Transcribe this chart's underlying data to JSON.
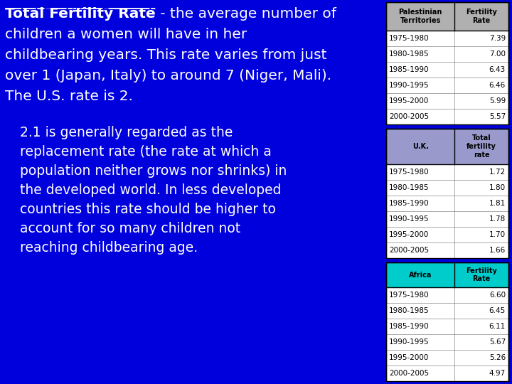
{
  "background_color": "#0000dd",
  "table1_header_col1": "Palestinian\nTerritories",
  "table1_header_col2": "Fertility\nRate",
  "table1_header_color": "#b0b0b0",
  "table1_rows": [
    [
      "1975-1980",
      "7.39"
    ],
    [
      "1980-1985",
      "7.00"
    ],
    [
      "1985-1990",
      "6.43"
    ],
    [
      "1990-1995",
      "6.46"
    ],
    [
      "1995-2000",
      "5.99"
    ],
    [
      "2000-2005",
      "5.57"
    ]
  ],
  "table2_header_col1": "U.K.",
  "table2_header_col2": "Total\nfertility\nrate",
  "table2_header_color": "#9999cc",
  "table2_rows": [
    [
      "1975-1980",
      "1.72"
    ],
    [
      "1980-1985",
      "1.80"
    ],
    [
      "1985-1990",
      "1.81"
    ],
    [
      "1990-1995",
      "1.78"
    ],
    [
      "1995-2000",
      "1.70"
    ],
    [
      "2000-2005",
      "1.66"
    ]
  ],
  "table3_header_col1": "Africa",
  "table3_header_col2": "Fertility\nRate",
  "table3_header_color": "#00cccc",
  "table3_rows": [
    [
      "1975-1980",
      "6.60"
    ],
    [
      "1980-1985",
      "6.45"
    ],
    [
      "1985-1990",
      "6.11"
    ],
    [
      "1990-1995",
      "5.67"
    ],
    [
      "1995-2000",
      "5.26"
    ],
    [
      "2000-2005",
      "4.97"
    ]
  ],
  "main_line1_bold": "Total Fertility Rate",
  "main_line1_rest": " - the average number of",
  "main_line2": "children a women will have in her",
  "main_line3": "childbearing years. This rate varies from just",
  "main_line4": "over 1 (Japan, Italy) to around 7 (Niger, Mali).",
  "main_line5": "The U.S. rate is 2.",
  "subtitle_lines": [
    "2.1 is generally regarded as the",
    "replacement rate (the rate at which a",
    "population neither grows nor shrinks) in",
    "the developed world. In less developed",
    "countries this rate should be higher to",
    "account for so many children not",
    "reaching childbearing age."
  ]
}
